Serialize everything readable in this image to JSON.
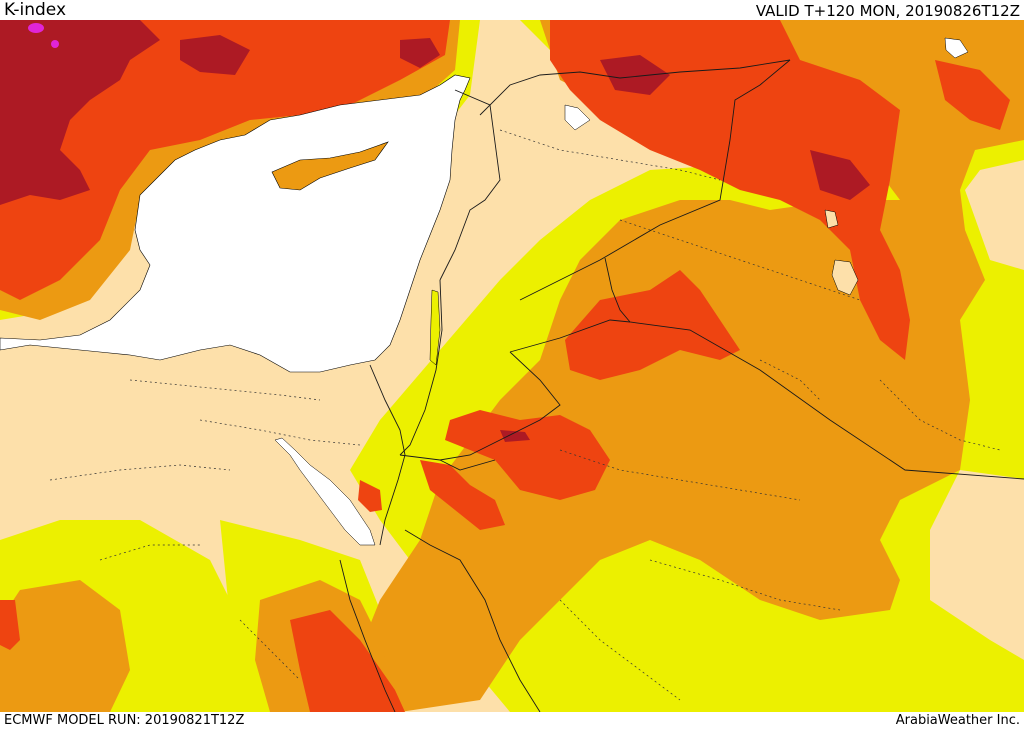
{
  "header": {
    "title": "K-index",
    "valid": "VALID T+120 MON, 20190826T12Z"
  },
  "footer": {
    "model_run": "ECMWF MODEL RUN: 20190821T12Z",
    "credit": "ArabiaWeather Inc."
  },
  "colors": {
    "land_base": "#fde0aa",
    "sea": "#ffffff",
    "level_yellow": "#ecf000",
    "level_light_orange": "#ec9a12",
    "level_orange": "#ee4411",
    "level_dark_red": "#ad1a24",
    "level_magenta": "#e025d6"
  }
}
